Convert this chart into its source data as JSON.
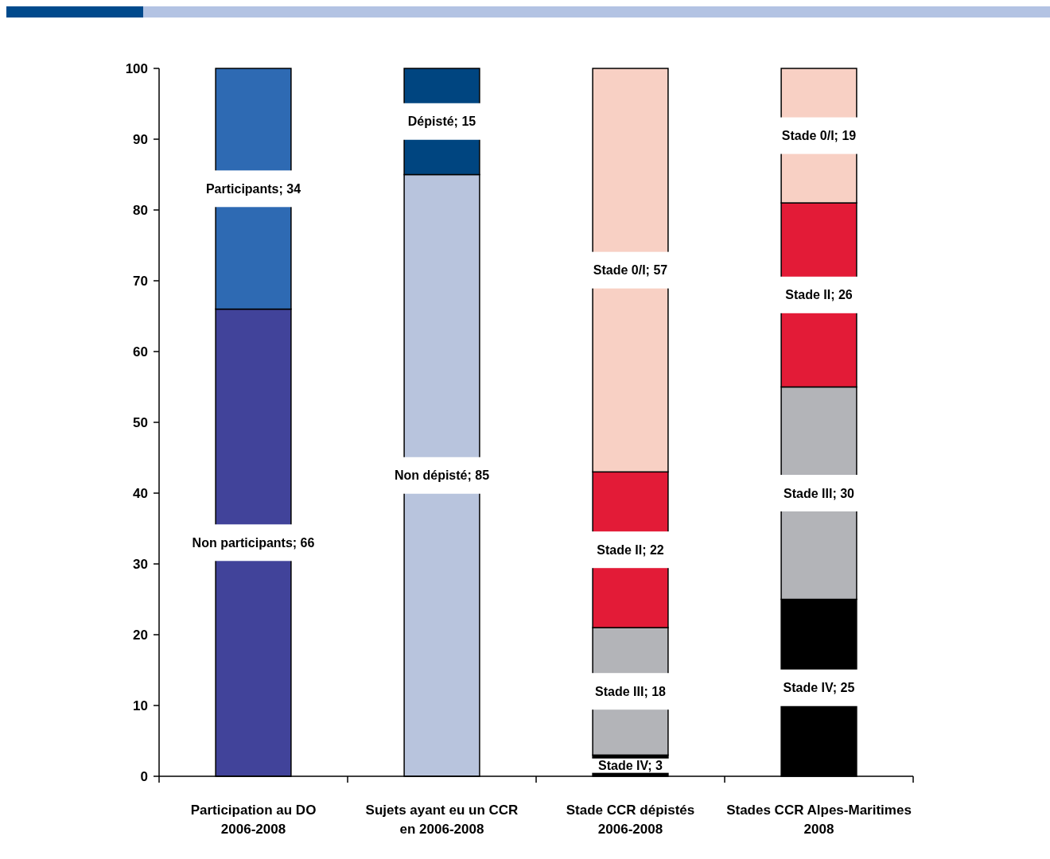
{
  "chart_data": {
    "type": "bar",
    "stacked": true,
    "categories": [
      "Participation au DO\n2006-2008",
      "Sujets ayant eu un CCR\nen 2006-2008",
      "Stade CCR dépistés\n2006-2008",
      "Stades CCR Alpes-Maritimes\n2008"
    ],
    "ylim": [
      0,
      100
    ],
    "yticks": [
      0,
      10,
      20,
      30,
      40,
      50,
      60,
      70,
      80,
      90,
      100
    ],
    "grid": false,
    "series": [
      {
        "color": "#41439a",
        "values": [
          66,
          null,
          null,
          null
        ],
        "value_labels": [
          "Non participants; 66",
          null,
          null,
          null
        ]
      },
      {
        "color": "#2e6ab3",
        "values": [
          34,
          null,
          null,
          null
        ],
        "value_labels": [
          "Participants; 34",
          null,
          null,
          null
        ]
      },
      {
        "color": "#b8c4dd",
        "values": [
          null,
          85,
          null,
          null
        ],
        "value_labels": [
          null,
          "Non dépisté; 85",
          null,
          null
        ]
      },
      {
        "color": "#004580",
        "values": [
          null,
          15,
          null,
          null
        ],
        "value_labels": [
          null,
          "Dépisté; 15",
          null,
          null
        ]
      },
      {
        "color": "#000000",
        "values": [
          null,
          null,
          3,
          25
        ],
        "value_labels": [
          null,
          null,
          "Stade IV; 3",
          "Stade IV; 25"
        ]
      },
      {
        "color": "#b3b4b8",
        "values": [
          null,
          null,
          18,
          30
        ],
        "value_labels": [
          null,
          null,
          "Stade III; 18",
          "Stade III; 30"
        ]
      },
      {
        "color": "#e31b37",
        "values": [
          null,
          null,
          22,
          26
        ],
        "value_labels": [
          null,
          null,
          "Stade II; 22",
          "Stade II; 26"
        ]
      },
      {
        "color": "#f8d0c4",
        "values": [
          null,
          null,
          57,
          19
        ],
        "value_labels": [
          null,
          null,
          "Stade 0/I; 57",
          "Stade 0/I; 19"
        ]
      }
    ]
  }
}
